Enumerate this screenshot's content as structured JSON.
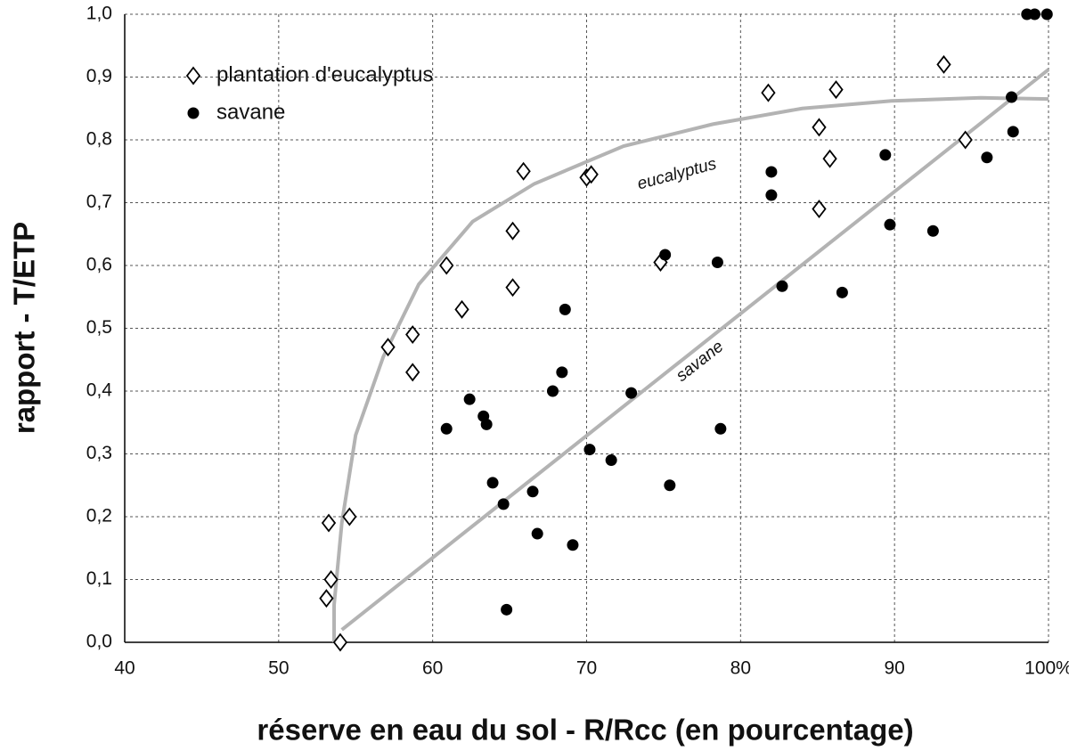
{
  "chart_data": {
    "type": "scatter",
    "x_label": "réserve en eau du sol - R/Rcc (en pourcentage)",
    "y_label": "rapport - T/ETP",
    "xlim": [
      40,
      100
    ],
    "ylim": [
      0,
      1
    ],
    "xticks": [
      40,
      50,
      60,
      70,
      80,
      90,
      {
        "value": 100,
        "label": "100%"
      }
    ],
    "yticks": [
      {
        "value": 0,
        "label": "0,0"
      },
      {
        "value": 0.1,
        "label": "0,1"
      },
      {
        "value": 0.2,
        "label": "0,2"
      },
      {
        "value": 0.3,
        "label": "0,3"
      },
      {
        "value": 0.4,
        "label": "0,4"
      },
      {
        "value": 0.5,
        "label": "0,5"
      },
      {
        "value": 0.6,
        "label": "0,6"
      },
      {
        "value": 0.7,
        "label": "0,7"
      },
      {
        "value": 0.8,
        "label": "0,8"
      },
      {
        "value": 0.9,
        "label": "0,9"
      },
      {
        "value": 1,
        "label": "1,0"
      }
    ],
    "grid": true,
    "legend": "upper left",
    "series": [
      {
        "name": "plantation d'eucalyptus",
        "marker": "diamond",
        "color": "#ffffff",
        "x": [
          54.0,
          53.25,
          54.6,
          53.4,
          53.1,
          57.1,
          58.7,
          58.7,
          60.9,
          61.9,
          65.2,
          65.2,
          65.9,
          70.0,
          70.3,
          74.8,
          81.8,
          85.1,
          86.2,
          85.8,
          85.1,
          93.2,
          94.6
        ],
        "values": [
          0.0,
          0.19,
          0.2,
          0.1,
          0.07,
          0.47,
          0.49,
          0.43,
          0.6,
          0.53,
          0.655,
          0.565,
          0.75,
          0.74,
          0.745,
          0.605,
          0.875,
          0.82,
          0.88,
          0.77,
          0.69,
          0.92,
          0.8
        ]
      },
      {
        "name": "savane",
        "marker": "circle",
        "color": "#000000",
        "x": [
          60.9,
          62.4,
          63.3,
          63.5,
          63.9,
          64.6,
          64.8,
          66.5,
          66.8,
          67.8,
          68.4,
          68.6,
          69.1,
          70.2,
          71.6,
          72.9,
          75.1,
          75.4,
          78.5,
          78.7,
          82.0,
          82.0,
          82.7,
          86.6,
          89.4,
          89.7,
          92.5,
          96.0,
          97.6,
          97.7,
          98.6,
          99.1,
          99.9
        ],
        "values": [
          0.34,
          0.387,
          0.36,
          0.347,
          0.254,
          0.22,
          0.052,
          0.24,
          0.173,
          0.4,
          0.43,
          0.53,
          0.155,
          0.307,
          0.29,
          0.397,
          0.617,
          0.25,
          0.605,
          0.34,
          0.712,
          0.749,
          0.567,
          0.557,
          0.776,
          0.665,
          0.655,
          0.772,
          0.868,
          0.813,
          1.0,
          1.0,
          1.0
        ]
      }
    ],
    "fit_curves": [
      {
        "label": "eucalyptus",
        "color": "#b3b3b3",
        "x": [
          53.6,
          53.6,
          54.1,
          55.0,
          56.8,
          59.1,
          62.6,
          66.6,
          72.4,
          78.2,
          84.0,
          89.8,
          95.6,
          100
        ],
        "values": [
          0,
          0.06,
          0.19,
          0.33,
          0.455,
          0.57,
          0.67,
          0.73,
          0.79,
          0.825,
          0.85,
          0.862,
          0.867,
          0.865
        ]
      },
      {
        "label": "savane",
        "color": "#b3b3b3",
        "x": [
          54.1,
          100
        ],
        "values": [
          0.02,
          0.912
        ]
      }
    ]
  }
}
